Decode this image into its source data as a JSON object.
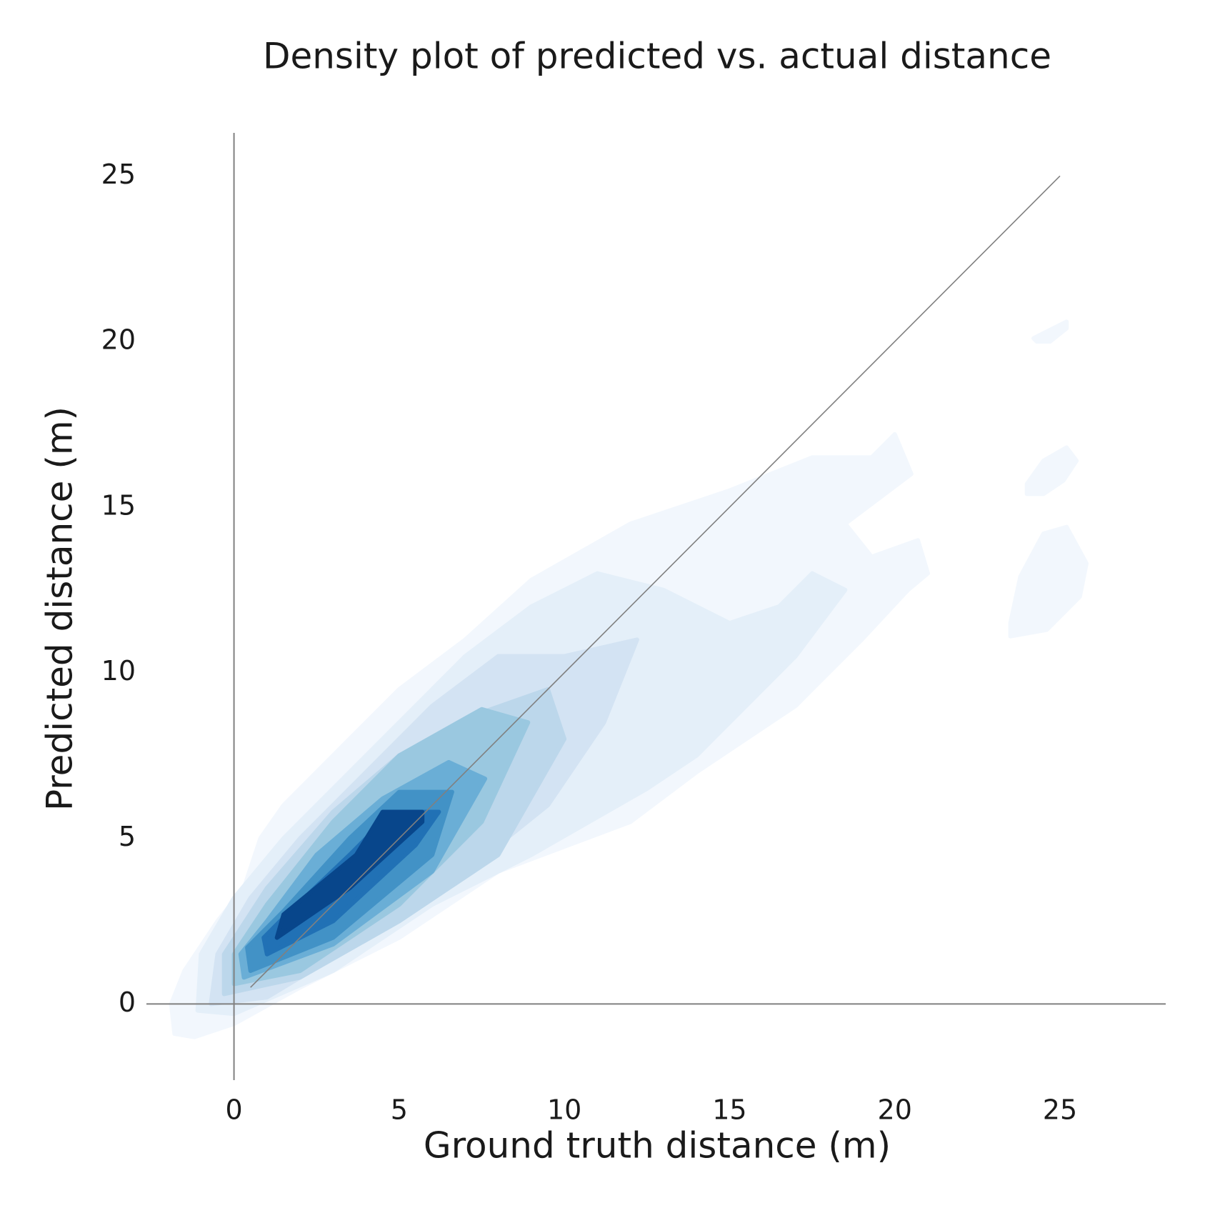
{
  "chart_data": {
    "type": "density",
    "title": "Density plot of predicted vs. actual distance",
    "x_label": "Ground truth distance (m)",
    "y_label": "Predicted distance (m)",
    "xlim": [
      -2.65,
      28.2
    ],
    "ylim": [
      -2.3,
      26.3
    ],
    "xticks": [
      0,
      5,
      10,
      15,
      20,
      25
    ],
    "yticks": [
      0,
      5,
      10,
      15,
      20,
      25
    ],
    "reference_line": {
      "x": [
        0.5,
        25
      ],
      "y": [
        0.5,
        25
      ],
      "color": "#808080"
    },
    "contours": [
      {
        "color": "#f2f7fd",
        "x": [
          -1.8,
          -1.2,
          0,
          2,
          5,
          8,
          12,
          14,
          17,
          19,
          20.4,
          21,
          20.7,
          19.3,
          18.5,
          20.5,
          20,
          19.3,
          17.5,
          15,
          12,
          9,
          7,
          5,
          3,
          1.5,
          0.8,
          0.3,
          -0.5,
          -1.5,
          -1.9
        ],
        "y": [
          -0.9,
          -1,
          -0.6,
          0.5,
          2,
          4,
          5.5,
          7,
          9,
          11,
          12.5,
          13,
          14,
          13.5,
          14.5,
          16,
          17.2,
          16.5,
          16.5,
          15.5,
          14.5,
          12.8,
          11,
          9.5,
          7.5,
          6,
          5,
          3.5,
          2.5,
          1,
          0
        ]
      },
      {
        "color": "#f2f7fd",
        "x": [
          24.2,
          24.6,
          25.2,
          25.2,
          24.7,
          24.3
        ],
        "y": [
          20.1,
          20.3,
          20.6,
          20.4,
          20,
          20
        ]
      },
      {
        "color": "#f2f7fd",
        "x": [
          24.0,
          24.5,
          25.2,
          25.5,
          25.1,
          24.5,
          24.0
        ],
        "y": [
          15.7,
          16.4,
          16.8,
          16.4,
          15.8,
          15.4,
          15.4
        ]
      },
      {
        "color": "#f2f7fd",
        "x": [
          23.5,
          23.8,
          24.5,
          25.2,
          25.8,
          25.6,
          24.6,
          23.5
        ],
        "y": [
          11.5,
          12.9,
          14.2,
          14.4,
          13.3,
          12.3,
          11.3,
          11.1
        ]
      },
      {
        "color": "#e4eff9",
        "x": [
          -1.1,
          0,
          3,
          6,
          9,
          12.5,
          14,
          17,
          18.5,
          17.5,
          16.5,
          15,
          13,
          11,
          9,
          7,
          5,
          3,
          1.5,
          0,
          -1
        ],
        "y": [
          -0.2,
          -0.3,
          1,
          3,
          4.5,
          6.5,
          7.5,
          10.5,
          12.5,
          13,
          12,
          11.5,
          12.5,
          13,
          12,
          10.5,
          8.5,
          6.5,
          5,
          3.2,
          1.5
        ]
      },
      {
        "color": "#d3e3f3",
        "x": [
          -0.7,
          1,
          4,
          7,
          9.5,
          11.2,
          12.2,
          10,
          8,
          6,
          4,
          2,
          0.5,
          -0.5
        ],
        "y": [
          0,
          0.2,
          2,
          4,
          6,
          8.5,
          11,
          10.5,
          10.5,
          9,
          7,
          5,
          3.2,
          1.5
        ]
      },
      {
        "color": "#bcd7eb",
        "x": [
          -0.3,
          2,
          5,
          8,
          10,
          9.5,
          7.5,
          5,
          3,
          1,
          -0.3
        ],
        "y": [
          0.3,
          0.8,
          2.5,
          4.5,
          8,
          9.5,
          8.8,
          7.5,
          5.8,
          3.5,
          1.5
        ]
      },
      {
        "color": "#9ac8e0",
        "x": [
          0,
          2,
          5,
          7.5,
          8.9,
          7.5,
          5,
          3,
          1,
          0
        ],
        "y": [
          0.6,
          1,
          3,
          5.5,
          8.5,
          8.9,
          7.5,
          5.5,
          3,
          1.5
        ]
      },
      {
        "color": "#6aaed6",
        "x": [
          0.3,
          3,
          6,
          7.6,
          6.5,
          4.5,
          2.5,
          1,
          0.2
        ],
        "y": [
          0.8,
          1.8,
          4,
          6.8,
          7.3,
          6.2,
          4.5,
          2.5,
          1.5
        ]
      },
      {
        "color": "#4292c6",
        "x": [
          0.5,
          3,
          6,
          6.6,
          5,
          3.5,
          1.5,
          0.4
        ],
        "y": [
          1,
          2,
          4.5,
          6.4,
          6.4,
          5,
          2.8,
          1.7
        ]
      },
      {
        "color": "#2171b5",
        "x": [
          1,
          3,
          5.5,
          6.2,
          4.8,
          3.5,
          1.5,
          0.9
        ],
        "y": [
          1.5,
          2.5,
          4.8,
          5.8,
          5.8,
          4.5,
          2.6,
          2
        ]
      },
      {
        "color": "#08468b",
        "x": [
          1.3,
          3.5,
          5.7,
          5.7,
          4.5,
          3.7,
          1.5
        ],
        "y": [
          2,
          3.5,
          5.5,
          5.8,
          5.8,
          4.5,
          2.7
        ]
      }
    ]
  }
}
